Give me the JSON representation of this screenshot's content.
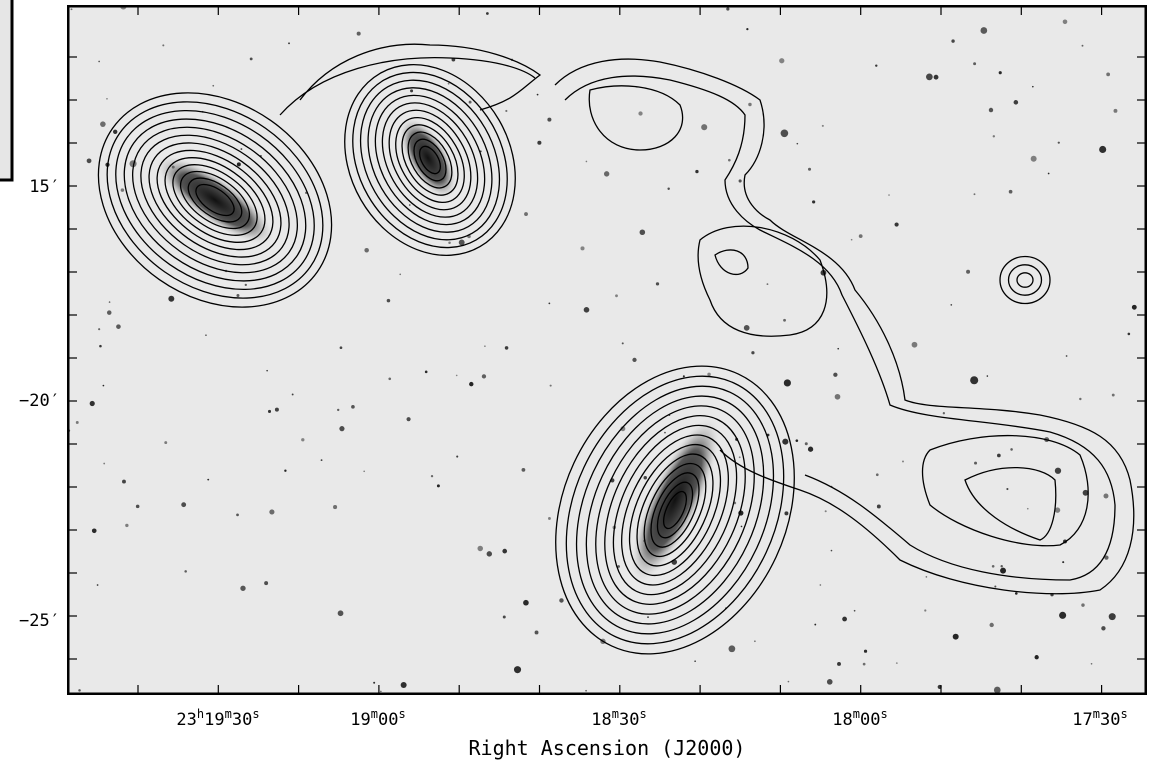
{
  "figure": {
    "x_axis": {
      "label": "Right Ascension (J2000)",
      "ticks": [
        [
          [
            "23",
            "h"
          ],
          [
            "19",
            "m"
          ],
          [
            "30",
            "s"
          ]
        ],
        [
          [
            "19",
            "m"
          ],
          [
            "00",
            "s"
          ]
        ],
        [
          [
            "18",
            "m"
          ],
          [
            "30",
            "s"
          ]
        ],
        [
          [
            "18",
            "m"
          ],
          [
            "00",
            "s"
          ]
        ],
        [
          [
            "17",
            "m"
          ],
          [
            "30",
            "s"
          ]
        ]
      ]
    },
    "y_axis": {
      "ticks": [
        "15′",
        "−20′",
        "−25′"
      ]
    }
  }
}
